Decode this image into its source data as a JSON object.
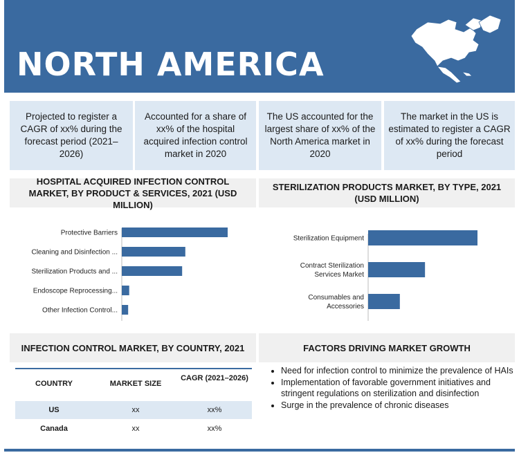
{
  "header": {
    "title": "NORTH AMERICA",
    "accent_color": "#3a6aa0",
    "icon": "north-america-map-icon"
  },
  "highlights": [
    {
      "text": "Projected to register a CAGR of xx% during the forecast period (2021–2026)"
    },
    {
      "text": "Accounted for a share of xx% of the hospital acquired infection control market in 2020"
    },
    {
      "text": "The US accounted for the largest share of xx% of the North America market in 2020"
    },
    {
      "text": "The market in the US is estimated to register a CAGR of xx% during the forecast period"
    }
  ],
  "panels": {
    "left_title": "HOSPITAL ACQUIRED INFECTION CONTROL MARKET, BY PRODUCT & SERVICES, 2021 (USD MILLION)",
    "right_title": "STERILIZATION PRODUCTS MARKET, BY TYPE, 2021 (USD MILLION)",
    "table_title": "INFECTION CONTROL MARKET, BY COUNTRY, 2021",
    "factors_title": "FACTORS DRIVING MARKET GROWTH"
  },
  "chart_data": [
    {
      "type": "bar",
      "orientation": "horizontal",
      "title": "HOSPITAL ACQUIRED INFECTION CONTROL MARKET, BY PRODUCT & SERVICES, 2021 (USD MILLION)",
      "categories": [
        "Protective Barriers",
        "Cleaning and Disinfection ...",
        "Sterilization Products and ...",
        "Endoscope Reprocessing...",
        "Other Infection Control..."
      ],
      "values": [
        100,
        60,
        57,
        7,
        6
      ],
      "bar_color": "#3a6aa0",
      "grid": false
    },
    {
      "type": "bar",
      "orientation": "horizontal",
      "title": "STERILIZATION PRODUCTS MARKET, BY TYPE, 2021 (USD MILLION)",
      "categories": [
        "Sterilization Equipment",
        "Contract Sterilization Services Market",
        "Consumables and Accessories"
      ],
      "values": [
        100,
        52,
        29
      ],
      "bar_color": "#3a6aa0",
      "grid": false
    }
  ],
  "table": {
    "headers": [
      "COUNTRY",
      "MARKET SIZE",
      "CAGR (2021–2026)"
    ],
    "rows": [
      [
        "US",
        "xx",
        "xx%"
      ],
      [
        "Canada",
        "xx",
        "xx%"
      ]
    ]
  },
  "factors": [
    "Need for infection control to minimize the prevalence of HAIs",
    "Implementation of favorable government initiatives and stringent regulations on sterilization and disinfection",
    "Surge in the prevalence of chronic diseases"
  ]
}
